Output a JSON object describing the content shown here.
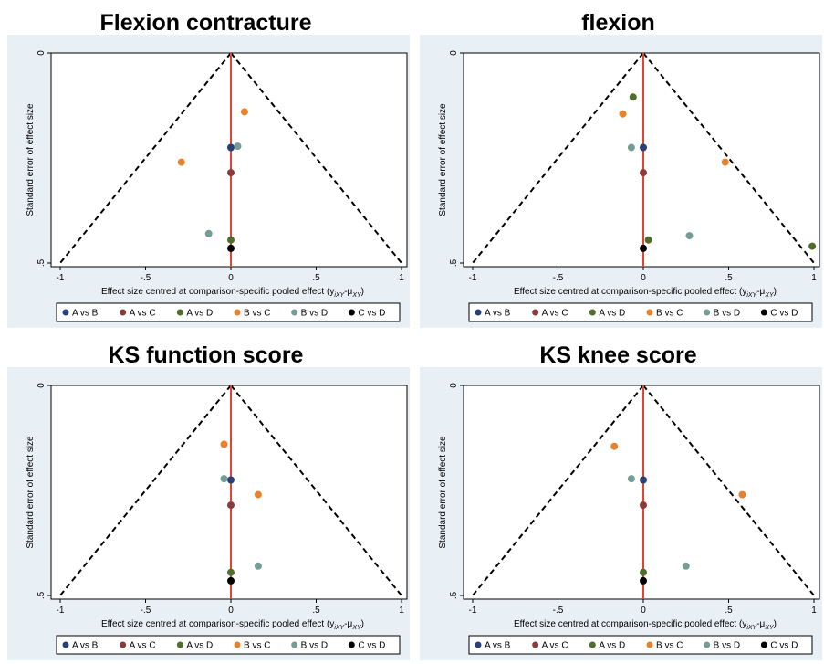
{
  "common": {
    "xlabel": "Effect size centred at comparison-specific pooled effect (y",
    "xlabel_sub": "iXY",
    "xlabel_mid": "-μ",
    "xlabel_sub2": "XY",
    "xlabel_end": ")",
    "ylabel": "Standard error of effect size",
    "x_tick_labels": [
      "-1",
      "-.5",
      "0",
      ".5",
      "1"
    ],
    "y_tick_labels": [
      "0",
      ".5"
    ],
    "legend": [
      {
        "label": "A vs B",
        "color": "#283f78"
      },
      {
        "label": "A vs C",
        "color": "#8c3b3b"
      },
      {
        "label": "A vs D",
        "color": "#4f6e2a"
      },
      {
        "label": "B vs C",
        "color": "#e6822c"
      },
      {
        "label": "B vs D",
        "color": "#749e95"
      },
      {
        "label": "C vs D",
        "color": "#000000"
      }
    ],
    "line_color": "#e8412f",
    "background": "#e9f0f5"
  },
  "chart_data": [
    {
      "type": "scatter",
      "title": "Flexion contracture",
      "xlim": [
        -1,
        1
      ],
      "ylim": [
        0,
        0.5
      ],
      "y_reversed": true,
      "series": [
        {
          "name": "A vs B",
          "points": [
            {
              "x": 0.0,
              "y": 0.225
            }
          ]
        },
        {
          "name": "A vs C",
          "points": [
            {
              "x": 0.0,
              "y": 0.285
            }
          ]
        },
        {
          "name": "A vs D",
          "points": [
            {
              "x": 0.0,
              "y": 0.445
            }
          ]
        },
        {
          "name": "B vs C",
          "points": [
            {
              "x": 0.08,
              "y": 0.14
            },
            {
              "x": -0.29,
              "y": 0.26
            }
          ]
        },
        {
          "name": "B vs D",
          "points": [
            {
              "x": 0.04,
              "y": 0.222
            },
            {
              "x": -0.13,
              "y": 0.43
            }
          ]
        },
        {
          "name": "C vs D",
          "points": [
            {
              "x": 0.0,
              "y": 0.465
            }
          ]
        }
      ]
    },
    {
      "type": "scatter",
      "title": "flexion",
      "xlim": [
        -1,
        1
      ],
      "ylim": [
        0,
        0.5
      ],
      "y_reversed": true,
      "series": [
        {
          "name": "A vs B",
          "points": [
            {
              "x": 0.0,
              "y": 0.225
            }
          ]
        },
        {
          "name": "A vs C",
          "points": [
            {
              "x": 0.0,
              "y": 0.285
            }
          ]
        },
        {
          "name": "A vs D",
          "points": [
            {
              "x": -0.06,
              "y": 0.105
            },
            {
              "x": 0.03,
              "y": 0.445
            },
            {
              "x": 0.99,
              "y": 0.46
            }
          ]
        },
        {
          "name": "B vs C",
          "points": [
            {
              "x": -0.12,
              "y": 0.145
            },
            {
              "x": 0.48,
              "y": 0.26
            }
          ]
        },
        {
          "name": "B vs D",
          "points": [
            {
              "x": -0.07,
              "y": 0.225
            },
            {
              "x": 0.27,
              "y": 0.435
            }
          ]
        },
        {
          "name": "C vs D",
          "points": [
            {
              "x": 0.0,
              "y": 0.465
            }
          ]
        }
      ]
    },
    {
      "type": "scatter",
      "title": "KS function score",
      "xlim": [
        -1,
        1
      ],
      "ylim": [
        0,
        0.5
      ],
      "y_reversed": true,
      "series": [
        {
          "name": "A vs B",
          "points": [
            {
              "x": 0.0,
              "y": 0.225
            }
          ]
        },
        {
          "name": "A vs C",
          "points": [
            {
              "x": 0.0,
              "y": 0.285
            }
          ]
        },
        {
          "name": "A vs D",
          "points": [
            {
              "x": 0.0,
              "y": 0.445
            }
          ]
        },
        {
          "name": "B vs C",
          "points": [
            {
              "x": -0.04,
              "y": 0.14
            },
            {
              "x": 0.16,
              "y": 0.26
            }
          ]
        },
        {
          "name": "B vs D",
          "points": [
            {
              "x": -0.04,
              "y": 0.222
            },
            {
              "x": 0.16,
              "y": 0.43
            }
          ]
        },
        {
          "name": "C vs D",
          "points": [
            {
              "x": 0.0,
              "y": 0.465
            }
          ]
        }
      ]
    },
    {
      "type": "scatter",
      "title": "KS knee score",
      "xlim": [
        -1,
        1
      ],
      "ylim": [
        0,
        0.5
      ],
      "y_reversed": true,
      "series": [
        {
          "name": "A vs B",
          "points": [
            {
              "x": 0.0,
              "y": 0.225
            }
          ]
        },
        {
          "name": "A vs C",
          "points": [
            {
              "x": 0.0,
              "y": 0.285
            }
          ]
        },
        {
          "name": "A vs D",
          "points": [
            {
              "x": 0.0,
              "y": 0.445
            }
          ]
        },
        {
          "name": "B vs C",
          "points": [
            {
              "x": -0.17,
              "y": 0.145
            },
            {
              "x": 0.58,
              "y": 0.26
            }
          ]
        },
        {
          "name": "B vs D",
          "points": [
            {
              "x": -0.07,
              "y": 0.222
            },
            {
              "x": 0.25,
              "y": 0.43
            }
          ]
        },
        {
          "name": "C vs D",
          "points": [
            {
              "x": 0.0,
              "y": 0.465
            }
          ]
        }
      ]
    }
  ]
}
